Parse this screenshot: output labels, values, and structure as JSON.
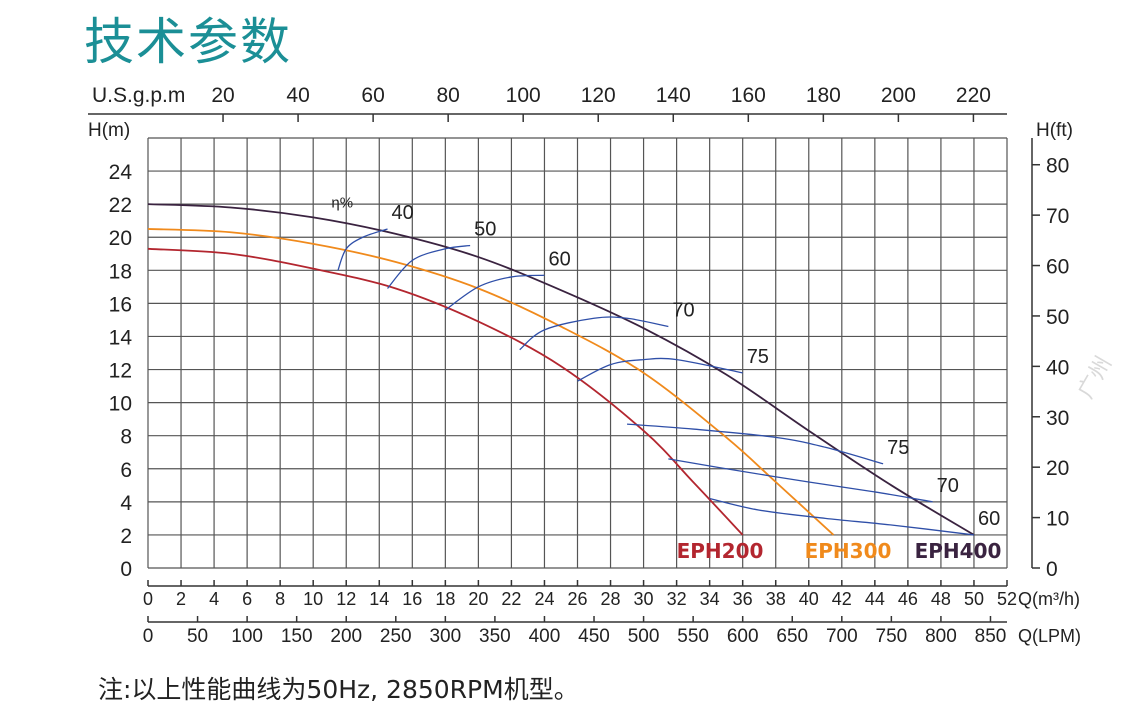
{
  "title": "技术参数",
  "note": "注:以上性能曲线为50Hz, 2850RPM机型。",
  "watermark": "广州",
  "chart_data": {
    "type": "line",
    "x_axis": {
      "label": "Q(m³/h)",
      "min": 0,
      "max": 52,
      "ticks": [
        0,
        2,
        4,
        6,
        8,
        10,
        12,
        14,
        16,
        18,
        20,
        22,
        24,
        26,
        28,
        30,
        32,
        34,
        36,
        38,
        40,
        42,
        44,
        46,
        48,
        50,
        52
      ]
    },
    "x_axis_lpm": {
      "label": "Q(LPM)",
      "ticks": [
        0,
        50,
        100,
        150,
        200,
        250,
        300,
        350,
        400,
        450,
        500,
        550,
        600,
        650,
        700,
        750,
        800,
        850
      ]
    },
    "x_axis_gpm": {
      "label": "U.S.g.p.m",
      "ticks": [
        20,
        40,
        60,
        80,
        100,
        120,
        140,
        160,
        180,
        200,
        220
      ]
    },
    "y_axis_m": {
      "label": "H(m)",
      "min": 0,
      "max": 24,
      "ticks": [
        0,
        2,
        4,
        6,
        8,
        10,
        12,
        14,
        16,
        18,
        20,
        22,
        24
      ]
    },
    "y_axis_ft": {
      "label": "H(ft)",
      "ticks": [
        0,
        10,
        20,
        30,
        40,
        50,
        60,
        70,
        80
      ]
    },
    "grid": true,
    "series": [
      {
        "name": "EPH200",
        "color": "#b3262f",
        "x": [
          0,
          5,
          10,
          15,
          20,
          25,
          30,
          33,
          36
        ],
        "y": [
          19.3,
          19.0,
          18.1,
          16.9,
          14.9,
          12.2,
          8.3,
          5.2,
          2.0
        ]
      },
      {
        "name": "EPH300",
        "color": "#f08a1c",
        "x": [
          0,
          5,
          10,
          15,
          20,
          25,
          30,
          35,
          38,
          41.5
        ],
        "y": [
          20.5,
          20.3,
          19.6,
          18.5,
          16.9,
          14.6,
          11.8,
          7.9,
          5.2,
          2.0
        ]
      },
      {
        "name": "EPH400",
        "color": "#3a2340",
        "x": [
          0,
          5,
          10,
          15,
          20,
          25,
          30,
          35,
          40,
          45,
          50
        ],
        "y": [
          22.0,
          21.8,
          21.2,
          20.2,
          18.8,
          16.8,
          14.5,
          11.7,
          8.3,
          5.0,
          2.0
        ]
      }
    ],
    "efficiency_label": "η%",
    "efficiency_curves": [
      {
        "label": "40",
        "x": [
          11.5,
          12,
          13,
          14.5
        ],
        "y": [
          18.0,
          19.3,
          20.0,
          20.5
        ]
      },
      {
        "label": "50",
        "x": [
          14.5,
          16,
          18,
          19.5
        ],
        "y": [
          16.9,
          18.6,
          19.3,
          19.5
        ]
      },
      {
        "label": "60",
        "x": [
          18,
          20,
          22,
          24
        ],
        "y": [
          15.6,
          17.0,
          17.6,
          17.7
        ]
      },
      {
        "label": "70",
        "x": [
          22.5,
          24,
          27,
          29,
          31.5
        ],
        "y": [
          13.2,
          14.4,
          15.1,
          15.1,
          14.6
        ]
      },
      {
        "label": "75",
        "x": [
          26,
          28,
          30,
          32,
          36
        ],
        "y": [
          11.3,
          12.3,
          12.6,
          12.6,
          11.8
        ]
      },
      {
        "label": "75",
        "x": [
          29,
          33,
          38,
          41,
          44.5
        ],
        "y": [
          8.7,
          8.4,
          7.9,
          7.3,
          6.3
        ]
      },
      {
        "label": "70",
        "x": [
          31.5,
          35,
          40,
          44,
          47.5
        ],
        "y": [
          6.6,
          6.0,
          5.2,
          4.6,
          4.0
        ]
      },
      {
        "label": "60",
        "x": [
          34,
          37,
          41,
          45,
          50
        ],
        "y": [
          4.2,
          3.5,
          3.0,
          2.6,
          2.0
        ]
      }
    ]
  }
}
